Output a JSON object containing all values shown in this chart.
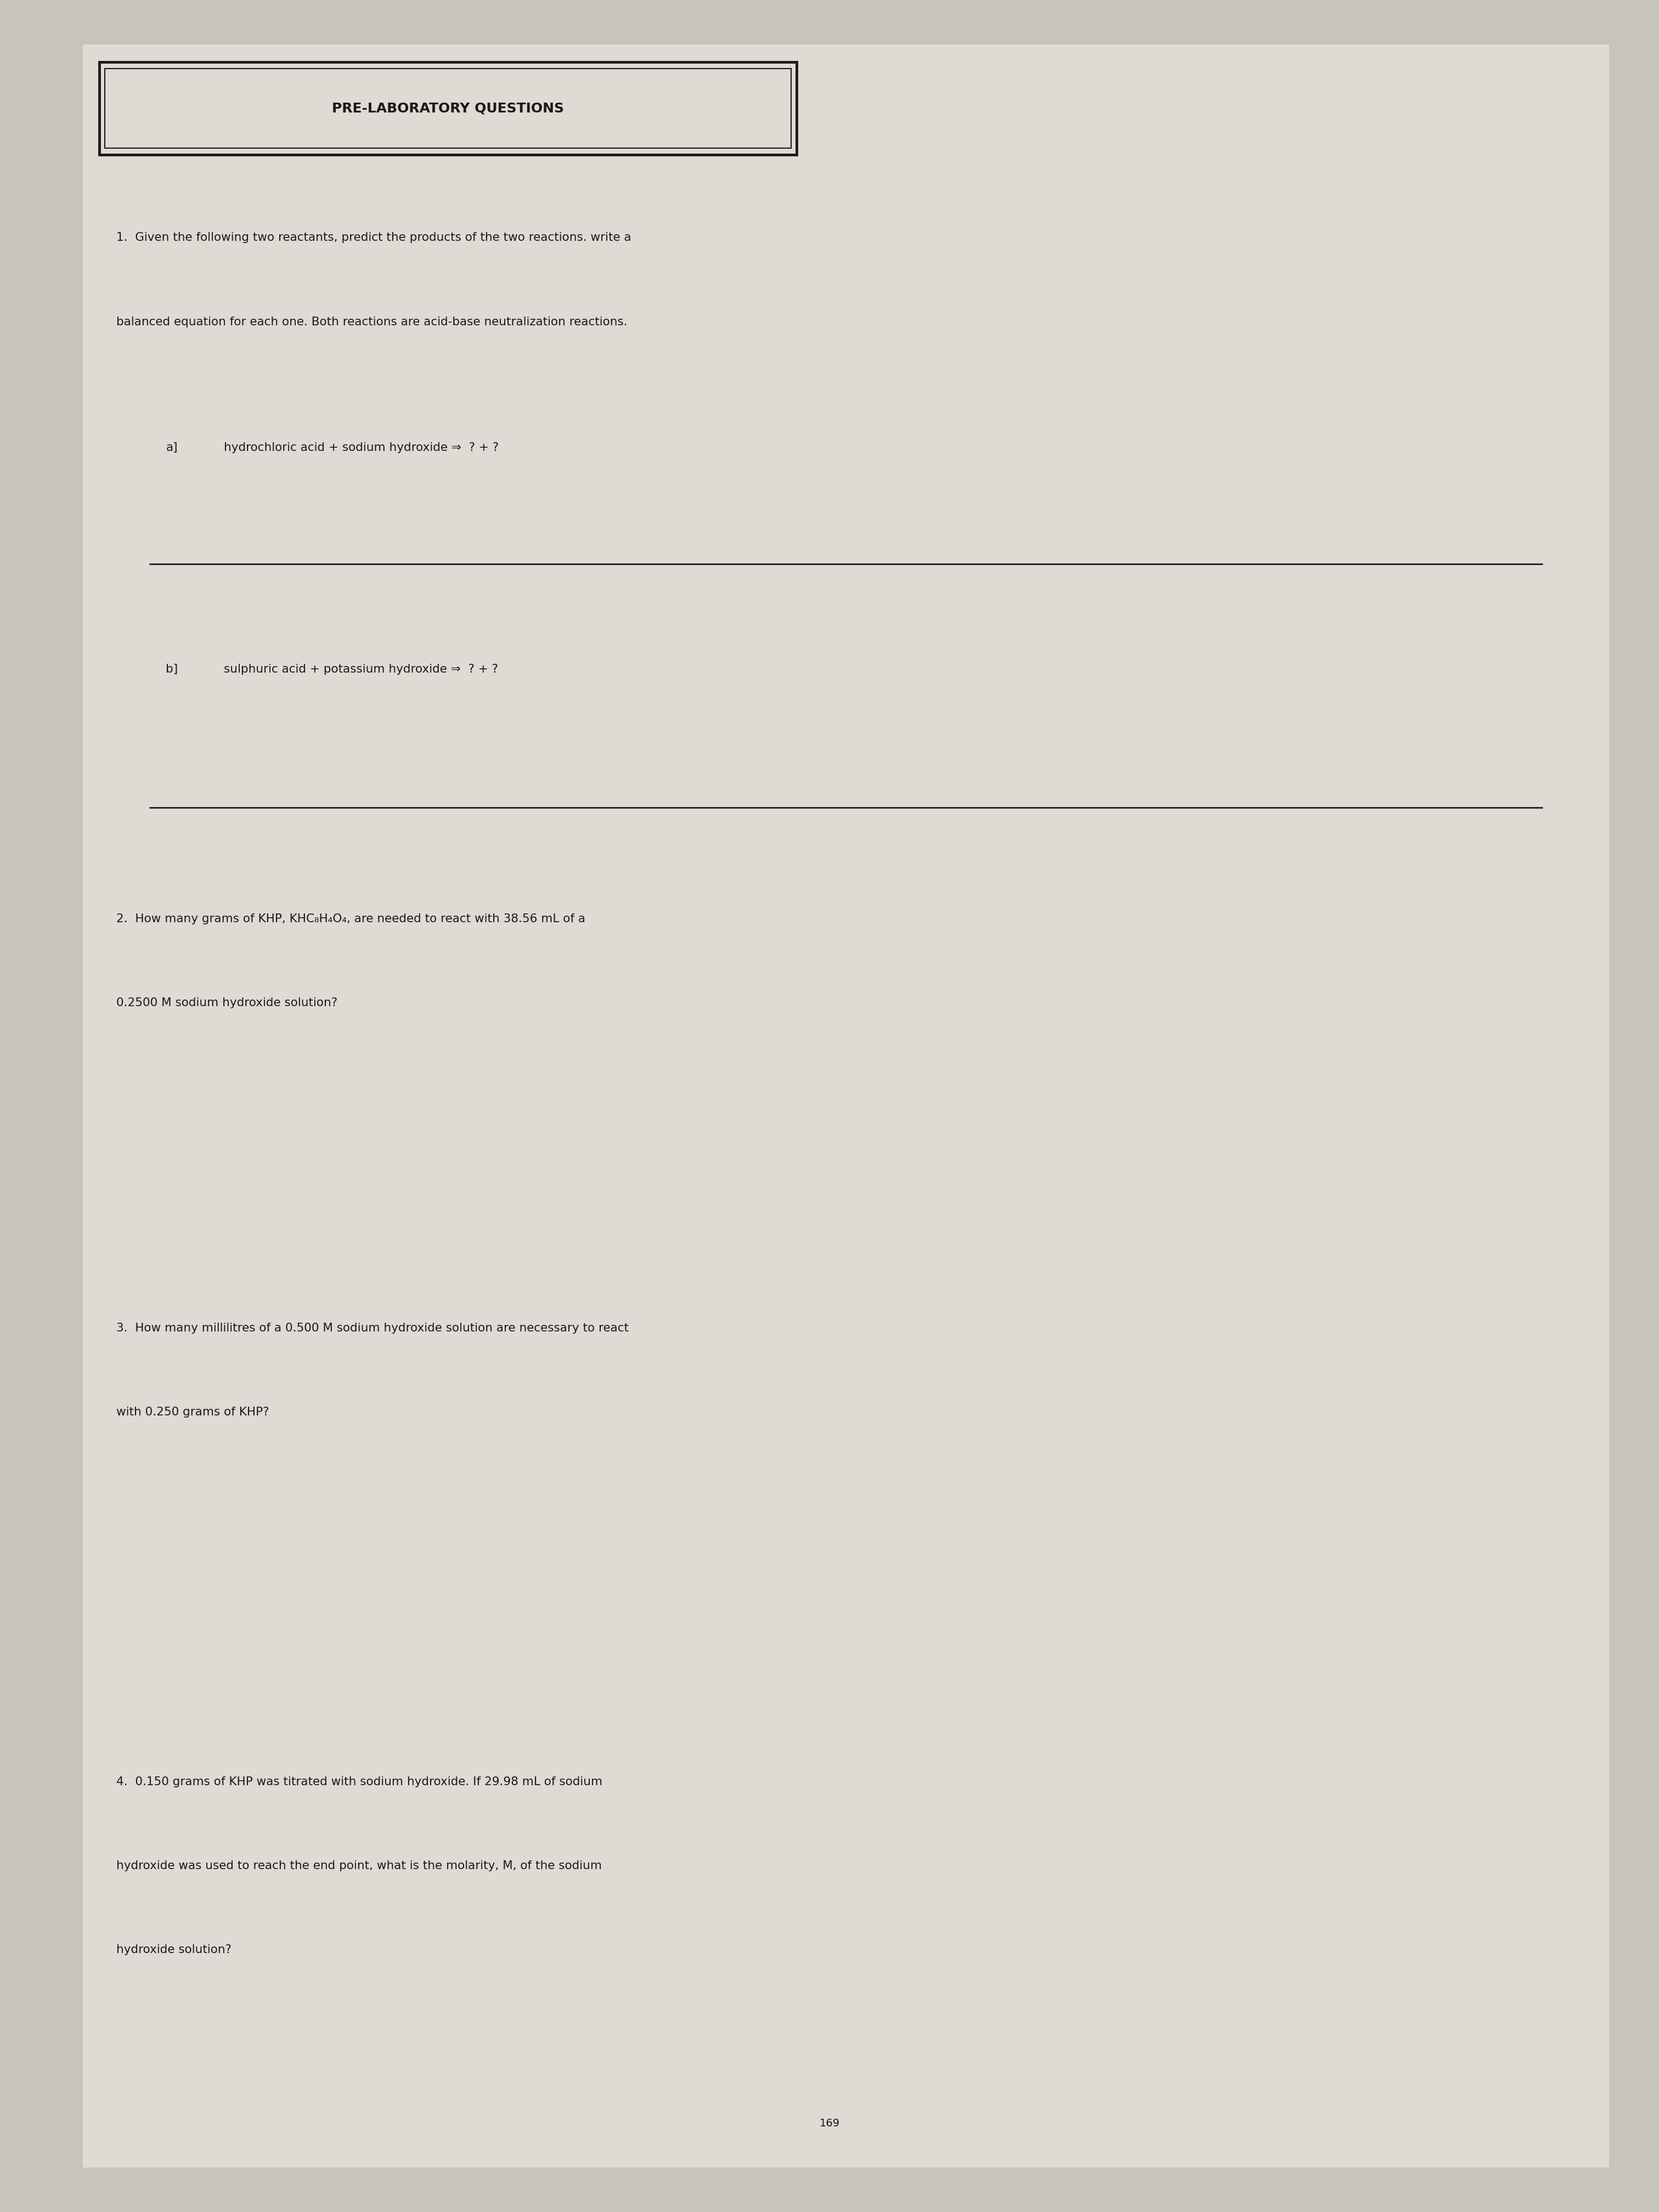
{
  "title": "PRE-LABORATORY QUESTIONS",
  "bg_color": "#d8d4cc",
  "text_color": "#1a1a1a",
  "page_bg": "#c8c4bc",
  "paper_color": "#dedad4",
  "q1_line1": "1.  Given the following two reactants, predict the products of the two reactions. write a",
  "q1_line2": "balanced equation for each one. Both reactions are acid-base neutralization reactions.",
  "q1a_label": "a]",
  "q1a_text": "hydrochloric acid + sodium hydroxide ⇒  ? + ?",
  "q1b_label": "b]",
  "q1b_text": "sulphuric acid + potassium hydroxide ⇒  ? + ?",
  "q2_line1": "2.  How many grams of KHP, KHC₈H₄O₄, are needed to react with 38.56 mL of a",
  "q2_line2": "0.2500 M sodium hydroxide solution?",
  "q3_line1": "3.  How many millilitres of a 0.500 M sodium hydroxide solution are necessary to react",
  "q3_line2": "with 0.250 grams of KHP?",
  "q4_line1": "4.  0.150 grams of KHP was titrated with sodium hydroxide. If 29.98 mL of sodium",
  "q4_line2": "hydroxide was used to reach the end point, what is the molarity, M, of the sodium",
  "q4_line3": "hydroxide solution?",
  "page_number": "169",
  "font_size_title": 18,
  "font_size_body": 15.5,
  "font_size_page": 14
}
